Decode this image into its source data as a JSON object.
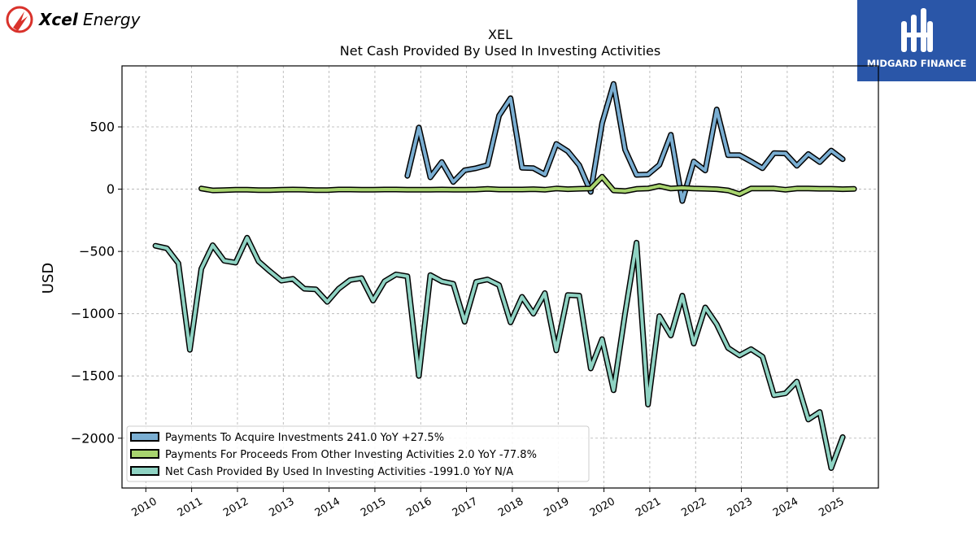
{
  "brand_left": {
    "name": "Xcel Energy",
    "accent": "#d9322b"
  },
  "brand_right": {
    "name": "MIDGARD FINANCE",
    "bg": "#2a56a8"
  },
  "chart_data": {
    "type": "line",
    "ticker": "XEL",
    "title": "Net Cash Provided By Used In Investing Activities",
    "ylabel": "USD",
    "ylim": [
      -2400,
      990
    ],
    "yticks": [
      500,
      0,
      -500,
      -1000,
      -1500,
      -2000
    ],
    "ytick_labels": [
      "500",
      "0",
      "−500",
      "−1000",
      "−1500",
      "−2000"
    ],
    "xlim": [
      2009.48,
      2025.99
    ],
    "xticks": [
      2010,
      2011,
      2012,
      2013,
      2014,
      2015,
      2016,
      2017,
      2018,
      2019,
      2020,
      2021,
      2022,
      2023,
      2024,
      2025
    ],
    "xtick_labels": [
      "2010",
      "2011",
      "2012",
      "2013",
      "2014",
      "2015",
      "2016",
      "2017",
      "2018",
      "2019",
      "2020",
      "2021",
      "2022",
      "2023",
      "2024",
      "2025"
    ],
    "grid": true,
    "legend_position": "lower-left",
    "series": [
      {
        "name": "Payments To Acquire Investments",
        "legend_label": "Payments To Acquire Investments  241.0 YoY +27.5%",
        "color": "#7aaed2",
        "points": [
          [
            2015.71,
            107
          ],
          [
            2015.96,
            495
          ],
          [
            2016.21,
            95
          ],
          [
            2016.46,
            218
          ],
          [
            2016.71,
            58
          ],
          [
            2016.96,
            152
          ],
          [
            2017.21,
            168
          ],
          [
            2017.46,
            193
          ],
          [
            2017.71,
            590
          ],
          [
            2017.96,
            730
          ],
          [
            2018.21,
            172
          ],
          [
            2018.46,
            168
          ],
          [
            2018.71,
            118
          ],
          [
            2018.96,
            363
          ],
          [
            2019.21,
            305
          ],
          [
            2019.46,
            192
          ],
          [
            2019.71,
            -22
          ],
          [
            2019.96,
            530
          ],
          [
            2020.21,
            845
          ],
          [
            2020.46,
            318
          ],
          [
            2020.71,
            115
          ],
          [
            2020.96,
            118
          ],
          [
            2021.21,
            195
          ],
          [
            2021.46,
            437
          ],
          [
            2021.71,
            -95
          ],
          [
            2021.96,
            222
          ],
          [
            2022.21,
            150
          ],
          [
            2022.46,
            640
          ],
          [
            2022.71,
            273
          ],
          [
            2022.96,
            273
          ],
          [
            2023.21,
            222
          ],
          [
            2023.46,
            168
          ],
          [
            2023.71,
            290
          ],
          [
            2023.96,
            287
          ],
          [
            2024.21,
            188
          ],
          [
            2024.46,
            282
          ],
          [
            2024.71,
            217
          ],
          [
            2024.96,
            310
          ],
          [
            2025.21,
            241
          ]
        ]
      },
      {
        "name": "Payments For Proceeds From Other Investing Activities",
        "legend_label": "Payments For Proceeds From Other Investing Activities  2.0 YoY -77.8%",
        "color": "#a8d46f",
        "points": [
          [
            2011.21,
            5
          ],
          [
            2011.46,
            -10
          ],
          [
            2011.71,
            -8
          ],
          [
            2011.96,
            -5
          ],
          [
            2012.21,
            -5
          ],
          [
            2012.46,
            -8
          ],
          [
            2012.71,
            -8
          ],
          [
            2012.96,
            -5
          ],
          [
            2013.21,
            -3
          ],
          [
            2013.46,
            -5
          ],
          [
            2013.71,
            -8
          ],
          [
            2013.96,
            -8
          ],
          [
            2014.21,
            -3
          ],
          [
            2014.46,
            -3
          ],
          [
            2014.71,
            -5
          ],
          [
            2014.96,
            -5
          ],
          [
            2015.21,
            -3
          ],
          [
            2015.46,
            -3
          ],
          [
            2015.71,
            -5
          ],
          [
            2015.96,
            -5
          ],
          [
            2016.21,
            -5
          ],
          [
            2016.46,
            -3
          ],
          [
            2016.71,
            -5
          ],
          [
            2016.96,
            -5
          ],
          [
            2017.21,
            -3
          ],
          [
            2017.46,
            2
          ],
          [
            2017.71,
            -3
          ],
          [
            2017.96,
            -3
          ],
          [
            2018.21,
            -3
          ],
          [
            2018.46,
            0
          ],
          [
            2018.71,
            -5
          ],
          [
            2018.96,
            5
          ],
          [
            2019.21,
            0
          ],
          [
            2019.46,
            3
          ],
          [
            2019.71,
            5
          ],
          [
            2019.96,
            100
          ],
          [
            2020.21,
            -10
          ],
          [
            2020.46,
            -15
          ],
          [
            2020.71,
            2
          ],
          [
            2020.96,
            5
          ],
          [
            2021.21,
            25
          ],
          [
            2021.46,
            5
          ],
          [
            2021.71,
            10
          ],
          [
            2021.96,
            5
          ],
          [
            2022.21,
            3
          ],
          [
            2022.46,
            0
          ],
          [
            2022.71,
            -10
          ],
          [
            2022.96,
            -40
          ],
          [
            2023.21,
            5
          ],
          [
            2023.46,
            5
          ],
          [
            2023.71,
            5
          ],
          [
            2023.96,
            -5
          ],
          [
            2024.21,
            5
          ],
          [
            2024.46,
            5
          ],
          [
            2024.71,
            3
          ],
          [
            2024.96,
            3
          ],
          [
            2025.21,
            0
          ],
          [
            2025.46,
            2
          ]
        ]
      },
      {
        "name": "Net Cash Provided By Used In Investing Activities",
        "legend_label": "Net Cash Provided By Used In Investing Activities  -1991.0 YoY N/A",
        "color": "#8fd3c3",
        "points": [
          [
            2010.21,
            -455
          ],
          [
            2010.46,
            -475
          ],
          [
            2010.71,
            -595
          ],
          [
            2010.96,
            -1290
          ],
          [
            2011.21,
            -640
          ],
          [
            2011.46,
            -450
          ],
          [
            2011.71,
            -575
          ],
          [
            2011.96,
            -590
          ],
          [
            2012.21,
            -390
          ],
          [
            2012.46,
            -580
          ],
          [
            2012.71,
            -660
          ],
          [
            2012.96,
            -735
          ],
          [
            2013.21,
            -720
          ],
          [
            2013.46,
            -800
          ],
          [
            2013.71,
            -805
          ],
          [
            2013.96,
            -905
          ],
          [
            2014.21,
            -800
          ],
          [
            2014.46,
            -730
          ],
          [
            2014.71,
            -715
          ],
          [
            2014.96,
            -895
          ],
          [
            2015.21,
            -740
          ],
          [
            2015.46,
            -685
          ],
          [
            2015.71,
            -700
          ],
          [
            2015.96,
            -1500
          ],
          [
            2016.21,
            -690
          ],
          [
            2016.46,
            -740
          ],
          [
            2016.71,
            -760
          ],
          [
            2016.96,
            -1065
          ],
          [
            2017.21,
            -745
          ],
          [
            2017.46,
            -725
          ],
          [
            2017.71,
            -770
          ],
          [
            2017.96,
            -1070
          ],
          [
            2018.21,
            -865
          ],
          [
            2018.46,
            -1000
          ],
          [
            2018.71,
            -835
          ],
          [
            2018.96,
            -1295
          ],
          [
            2019.21,
            -850
          ],
          [
            2019.46,
            -855
          ],
          [
            2019.71,
            -1440
          ],
          [
            2019.96,
            -1205
          ],
          [
            2020.21,
            -1615
          ],
          [
            2020.46,
            -1000
          ],
          [
            2020.71,
            -430
          ],
          [
            2020.96,
            -1730
          ],
          [
            2021.21,
            -1020
          ],
          [
            2021.46,
            -1175
          ],
          [
            2021.71,
            -855
          ],
          [
            2021.96,
            -1240
          ],
          [
            2022.21,
            -950
          ],
          [
            2022.46,
            -1085
          ],
          [
            2022.71,
            -1275
          ],
          [
            2022.96,
            -1335
          ],
          [
            2023.21,
            -1285
          ],
          [
            2023.46,
            -1345
          ],
          [
            2023.71,
            -1655
          ],
          [
            2023.96,
            -1640
          ],
          [
            2024.21,
            -1545
          ],
          [
            2024.46,
            -1850
          ],
          [
            2024.71,
            -1790
          ],
          [
            2024.96,
            -2240
          ],
          [
            2025.21,
            -1991
          ]
        ]
      }
    ]
  }
}
